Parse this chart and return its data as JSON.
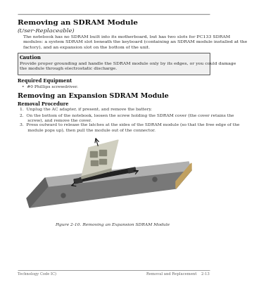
{
  "bg_color": "#ffffff",
  "line_color": "#999999",
  "title": "Removing an SDRAM Module",
  "subtitle": "(User-Replaceable)",
  "body_text": "The notebook has no SDRAM built into its motherboard, but has two slots for PC133 SDRAM\nmodules: a system SDRAM slot beneath the keyboard (containing an SDRAM module installed at the\nfactory), and an expansion slot on the bottom of the unit.",
  "caution_title": "Caution",
  "caution_text": "Provide proper grounding and handle the SDRAM module only by its edges, or you could damage\nthe module through electrostatic discharge.",
  "req_equip_title": "Required Equipment",
  "req_equip_bullet": "•  #0 Phillips screwdriver.",
  "section2_title": "Removing an Expansion SDRAM Module",
  "removal_proc_title": "Removal Procedure",
  "step1": "1.  Unplug the AC adapter, if present, and remove the battery.",
  "step2": "2.  On the bottom of the notebook, loosen the screw holding the SDRAM cover (the cover retains the\n      screw), and remove the cover.",
  "step3": "3.  Press outward to release the latches at the sides of the SDRAM module (so that the free edge of the\n      module pops up), then pull the module out of the connector.",
  "figure_caption": "Figure 2-10. Removing an Expansion SDRAM Module",
  "footer_left": "Technology Code IC)",
  "footer_right": "Removal and Replacement    2-13",
  "title_fontsize": 7.5,
  "subtitle_fontsize": 6.0,
  "body_fontsize": 4.5,
  "caution_title_fontsize": 5.0,
  "caution_text_fontsize": 4.5,
  "section2_fontsize": 6.8,
  "small_fontsize": 4.8,
  "step_fontsize": 4.3,
  "footer_fontsize": 3.8,
  "text_color": "#111111",
  "body_color": "#333333",
  "caution_box_color": "#f0f0f0",
  "caution_border_color": "#555555"
}
